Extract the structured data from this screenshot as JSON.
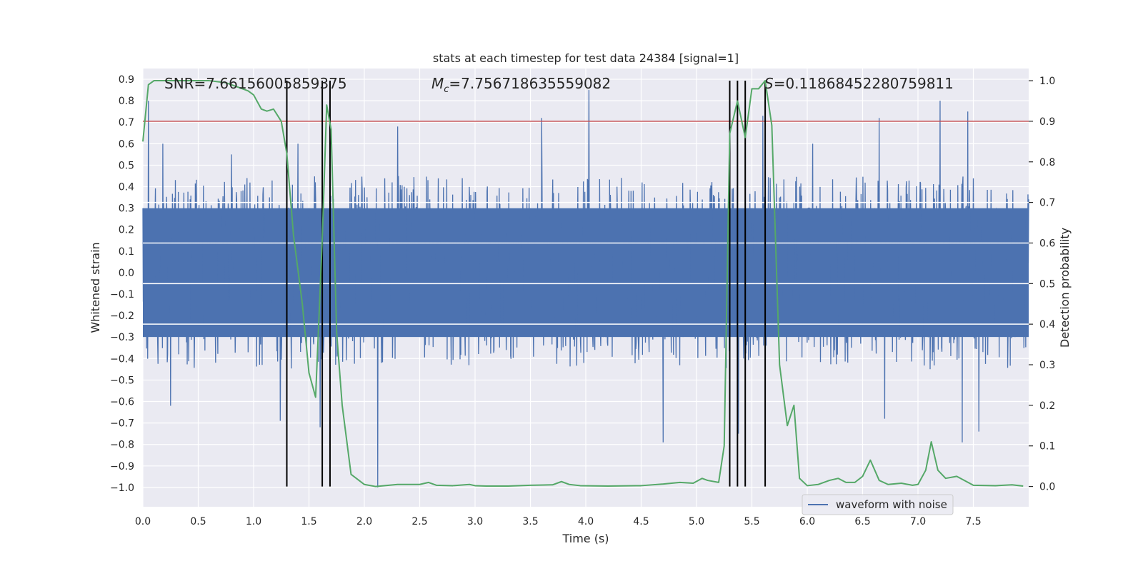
{
  "chart_data": {
    "type": "line",
    "title": "stats at each timestep for test data 24384 [signal=1]",
    "xlabel": "Time (s)",
    "ylabel_left": "Whitened strain",
    "ylabel_right": "Detection probability",
    "xlim": [
      0.0,
      8.0
    ],
    "ylim_left": [
      -1.09,
      0.95
    ],
    "ylim_right": [
      -0.05,
      1.03
    ],
    "x_ticks": [
      "0.0",
      "0.5",
      "1.0",
      "1.5",
      "2.0",
      "2.5",
      "3.0",
      "3.5",
      "4.0",
      "4.5",
      "5.0",
      "5.5",
      "6.0",
      "6.5",
      "7.0",
      "7.5"
    ],
    "y_left_ticks": [
      "0.9",
      "0.8",
      "0.7",
      "0.6",
      "0.5",
      "0.4",
      "0.3",
      "0.2",
      "0.1",
      "0.0",
      "−0.1",
      "−0.2",
      "−0.3",
      "−0.4",
      "−0.5",
      "−0.6",
      "−0.7",
      "−0.8",
      "−0.9",
      "−1.0"
    ],
    "y_right_ticks": [
      "1.0",
      "0.9",
      "0.8",
      "0.7",
      "0.6",
      "0.5",
      "0.4",
      "0.3",
      "0.2",
      "0.1",
      "0.0"
    ],
    "annotations": {
      "snr": "SNR=7.66156005859375",
      "mc_symbol": "M",
      "mc_sub": "c",
      "mc_value": "=7.756718635559082",
      "s_symbol": "S",
      "s_value": "=0.11868452280759811"
    },
    "legend": {
      "label": "waveform with noise",
      "location": "lower-right"
    },
    "threshold": {
      "value": 0.9,
      "axis": "right",
      "color": "#c44e52"
    },
    "vertical_markers": [
      1.3,
      1.62,
      1.69,
      5.3,
      5.37,
      5.44,
      5.62
    ],
    "horizontal_guides_right": [
      0.7,
      0.6,
      0.5,
      0.4
    ],
    "waveform": {
      "name": "waveform with noise",
      "color": "#4c72b0",
      "core_band": [
        -0.3,
        0.3
      ],
      "typical_max": 0.45,
      "typical_min": -0.45,
      "peaks": [
        [
          0.05,
          0.8
        ],
        [
          0.18,
          0.6
        ],
        [
          0.8,
          0.55
        ],
        [
          1.4,
          0.6
        ],
        [
          2.3,
          0.68
        ],
        [
          3.6,
          0.72
        ],
        [
          4.03,
          0.85
        ],
        [
          5.6,
          0.73
        ],
        [
          6.05,
          0.6
        ],
        [
          6.65,
          0.72
        ],
        [
          7.2,
          0.8
        ],
        [
          7.45,
          0.75
        ]
      ],
      "troughs": [
        [
          0.25,
          -0.62
        ],
        [
          1.24,
          -0.69
        ],
        [
          1.6,
          -0.72
        ],
        [
          2.12,
          -1.0
        ],
        [
          4.7,
          -0.79
        ],
        [
          5.38,
          -0.75
        ],
        [
          6.7,
          -0.68
        ],
        [
          7.4,
          -0.79
        ],
        [
          7.55,
          -0.74
        ]
      ]
    },
    "series": [
      {
        "name": "detection probability",
        "axis": "right",
        "color": "#55a868",
        "x": [
          0.0,
          0.05,
          0.1,
          0.2,
          0.4,
          0.6,
          0.75,
          0.85,
          0.95,
          1.0,
          1.07,
          1.12,
          1.18,
          1.25,
          1.3,
          1.36,
          1.44,
          1.5,
          1.56,
          1.62,
          1.66,
          1.7,
          1.75,
          1.8,
          1.88,
          2.0,
          2.1,
          2.3,
          2.5,
          2.58,
          2.65,
          2.8,
          2.95,
          3.0,
          3.1,
          3.3,
          3.5,
          3.7,
          3.78,
          3.85,
          3.95,
          4.2,
          4.5,
          4.7,
          4.85,
          4.97,
          5.05,
          5.1,
          5.2,
          5.25,
          5.3,
          5.37,
          5.44,
          5.5,
          5.56,
          5.62,
          5.68,
          5.75,
          5.82,
          5.88,
          5.93,
          6.0,
          6.1,
          6.2,
          6.28,
          6.35,
          6.43,
          6.5,
          6.57,
          6.65,
          6.73,
          6.85,
          6.95,
          7.0,
          7.07,
          7.12,
          7.18,
          7.25,
          7.35,
          7.5,
          7.7,
          7.85,
          7.95
        ],
        "y": [
          0.85,
          0.99,
          1.0,
          1.0,
          1.0,
          1.0,
          0.995,
          0.985,
          0.975,
          0.965,
          0.93,
          0.925,
          0.93,
          0.9,
          0.82,
          0.62,
          0.45,
          0.28,
          0.22,
          0.61,
          0.94,
          0.88,
          0.38,
          0.2,
          0.03,
          0.005,
          0.0,
          0.005,
          0.005,
          0.01,
          0.003,
          0.002,
          0.005,
          0.002,
          0.001,
          0.001,
          0.003,
          0.004,
          0.012,
          0.005,
          0.002,
          0.001,
          0.002,
          0.006,
          0.01,
          0.008,
          0.02,
          0.015,
          0.01,
          0.1,
          0.87,
          0.95,
          0.86,
          0.98,
          0.98,
          1.0,
          0.89,
          0.3,
          0.15,
          0.2,
          0.02,
          0.002,
          0.005,
          0.015,
          0.02,
          0.01,
          0.01,
          0.025,
          0.065,
          0.015,
          0.005,
          0.008,
          0.003,
          0.005,
          0.04,
          0.11,
          0.04,
          0.02,
          0.025,
          0.003,
          0.002,
          0.004,
          0.001
        ]
      }
    ]
  }
}
